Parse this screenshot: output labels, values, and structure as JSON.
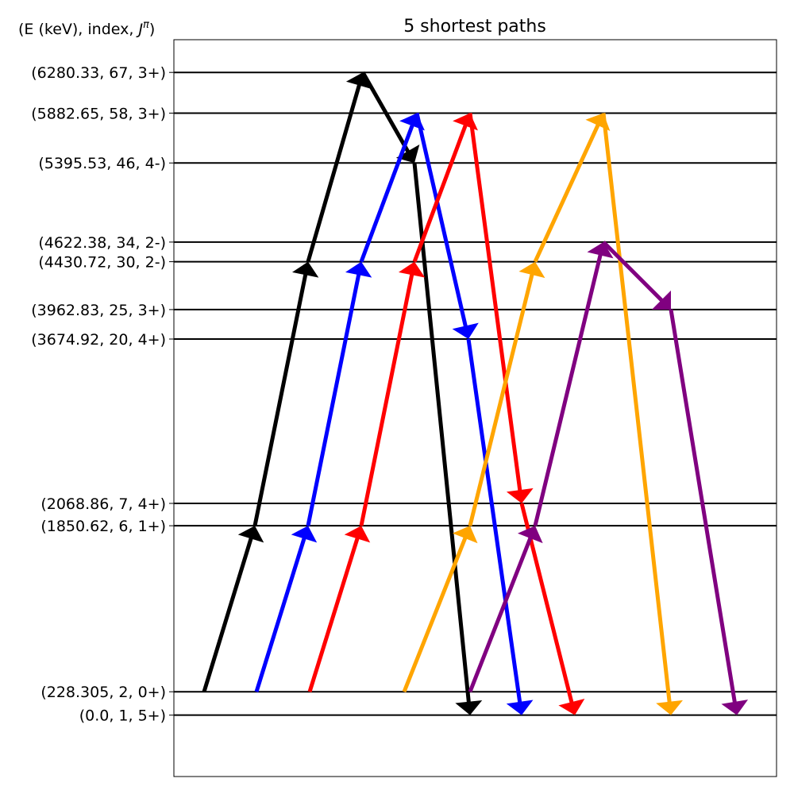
{
  "chart_data": {
    "type": "level-scheme",
    "title": "5 shortest paths",
    "ylabel": "(E (keV), index, J^π)",
    "ylabel_parts": {
      "prefix": "(E (keV), index, ",
      "j": "J",
      "pi": "π",
      "suffix": ")"
    },
    "ylim": [
      -600,
      6600
    ],
    "levels": [
      {
        "energy": 6280.33,
        "index": 67,
        "jpi": "3+",
        "label": "(6280.33, 67, 3+)"
      },
      {
        "energy": 5882.65,
        "index": 58,
        "jpi": "3+",
        "label": "(5882.65, 58, 3+)"
      },
      {
        "energy": 5395.53,
        "index": 46,
        "jpi": "4-",
        "label": "(5395.53, 46, 4-)"
      },
      {
        "energy": 4622.38,
        "index": 34,
        "jpi": "2-",
        "label": "(4622.38, 34, 2-)"
      },
      {
        "energy": 4430.72,
        "index": 30,
        "jpi": "2-",
        "label": "(4430.72, 30, 2-)"
      },
      {
        "energy": 3962.83,
        "index": 25,
        "jpi": "3+",
        "label": "(3962.83, 25, 3+)"
      },
      {
        "energy": 3674.92,
        "index": 20,
        "jpi": "4+",
        "label": "(3674.92, 20, 4+)"
      },
      {
        "energy": 2068.86,
        "index": 7,
        "jpi": "4+",
        "label": "(2068.86, 7, 4+)"
      },
      {
        "energy": 1850.62,
        "index": 6,
        "jpi": "1+",
        "label": "(1850.62, 6, 1+)"
      },
      {
        "energy": 228.305,
        "index": 2,
        "jpi": "0+",
        "label": "(228.305, 2, 0+)"
      },
      {
        "energy": 0.0,
        "index": 1,
        "jpi": "5+",
        "label": "(0.0, 1, 5+)"
      }
    ],
    "paths": [
      {
        "color": "#000000",
        "energies": [
          228.305,
          1850.62,
          4430.72,
          6280.33,
          5395.53,
          0.0
        ]
      },
      {
        "color": "#0000ff",
        "energies": [
          228.305,
          1850.62,
          4430.72,
          5882.65,
          3674.92,
          0.0
        ]
      },
      {
        "color": "#ff0000",
        "energies": [
          228.305,
          1850.62,
          4430.72,
          5882.65,
          2068.86,
          0.0
        ]
      },
      {
        "color": "#ffa500",
        "energies": [
          228.305,
          1850.62,
          4430.72,
          5882.65,
          0.0
        ]
      },
      {
        "color": "#800080",
        "energies": [
          228.305,
          1850.62,
          4622.38,
          3962.83,
          0.0
        ]
      }
    ]
  }
}
